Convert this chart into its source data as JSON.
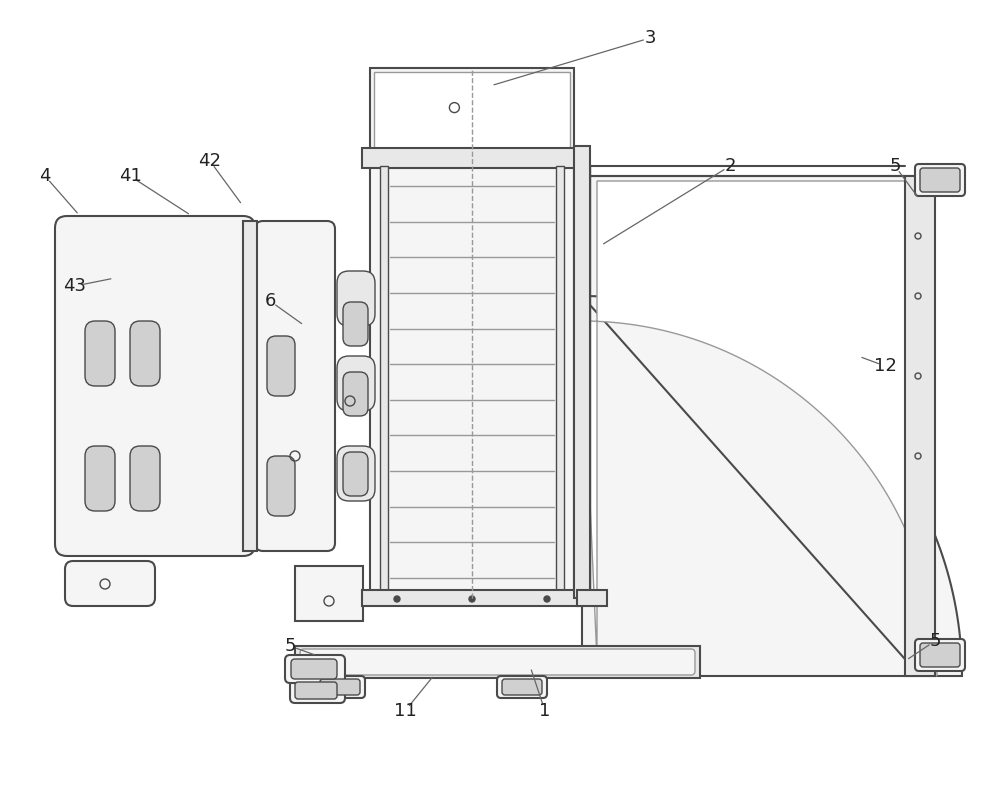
{
  "bg_color": "#ffffff",
  "lc": "#4a4a4a",
  "lc_dark": "#333333",
  "lc_light": "#999999",
  "fc_white": "#ffffff",
  "fc_light": "#f5f5f5",
  "fc_mid": "#e8e8e8",
  "fc_dark": "#d0d0d0",
  "label_color": "#222222",
  "label_fontsize": 13
}
